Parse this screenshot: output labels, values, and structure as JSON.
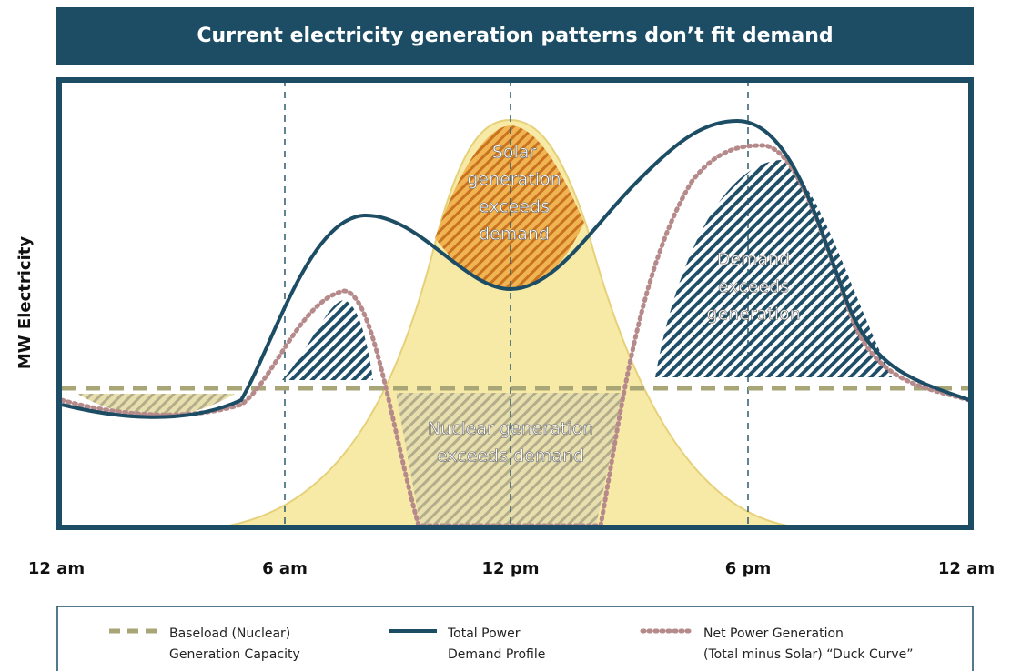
{
  "title": "Current electricity generation patterns don’t fit demand",
  "y_axis_label": "MW Electricity",
  "x_labels": [
    "12 am",
    "6 am",
    "12 pm",
    "6 pm",
    "12 am"
  ],
  "regions": [
    {
      "lines": [
        "Solar",
        "generation",
        "exceeds",
        "demand"
      ]
    },
    {
      "lines": [
        "Demand",
        "exceeds",
        "generation"
      ]
    },
    {
      "lines": [
        "Nuclear generation",
        "exceeds demand"
      ]
    }
  ],
  "legend": [
    {
      "lines": [
        "Baseload (Nuclear)",
        "Generation Capacity"
      ]
    },
    {
      "lines": [
        "Total Power",
        "Demand Profile"
      ]
    },
    {
      "lines": [
        "Net Power Generation",
        "(Total minus Solar) “Duck Curve”"
      ]
    }
  ]
}
